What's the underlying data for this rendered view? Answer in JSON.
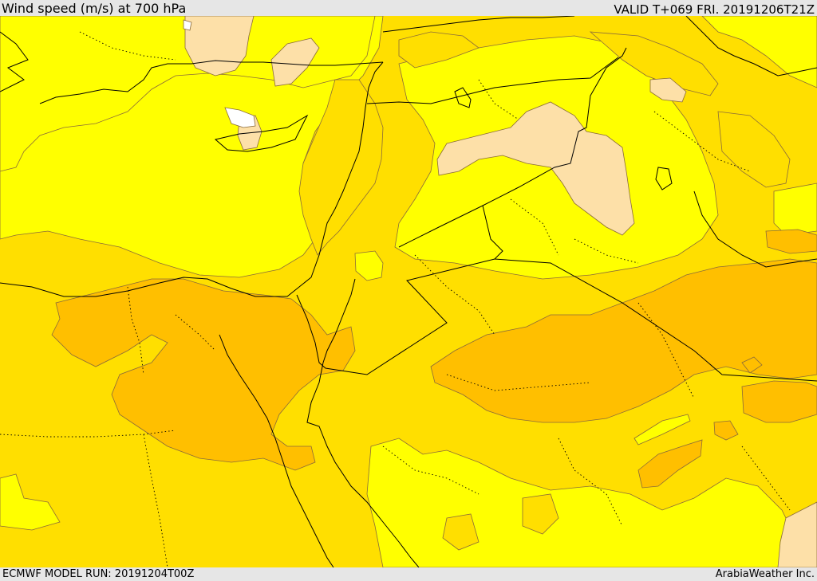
{
  "header": {
    "title": "Wind speed (m/s) at 700 hPa",
    "valid_time": "VALID T+069 FRI. 20191206T21Z"
  },
  "footer": {
    "model_run": "ECMWF MODEL RUN: 20191204T00Z",
    "credit": "ArabiaWeather Inc."
  },
  "colors": {
    "band_lowest": "#ffffff",
    "band_low": "#fde0a8",
    "band_light": "#ffff00",
    "band_mid": "#ffdf00",
    "band_high": "#ffbf00",
    "contour_line": "#8a6a3a",
    "boundary_line": "#000000"
  }
}
